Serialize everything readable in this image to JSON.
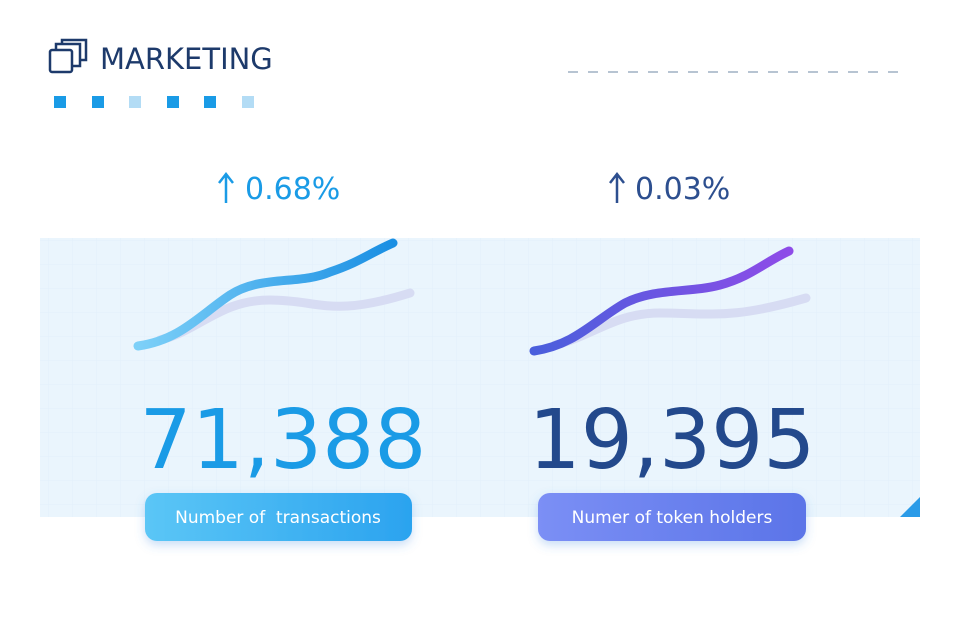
{
  "header": {
    "title": "MARKETING"
  },
  "metrics": [
    {
      "change": "0.68%",
      "value": "71,388",
      "label": "Number of  transactions"
    },
    {
      "change": "0.03%",
      "value": "19,395",
      "label": "Numer of token holders"
    }
  ]
}
